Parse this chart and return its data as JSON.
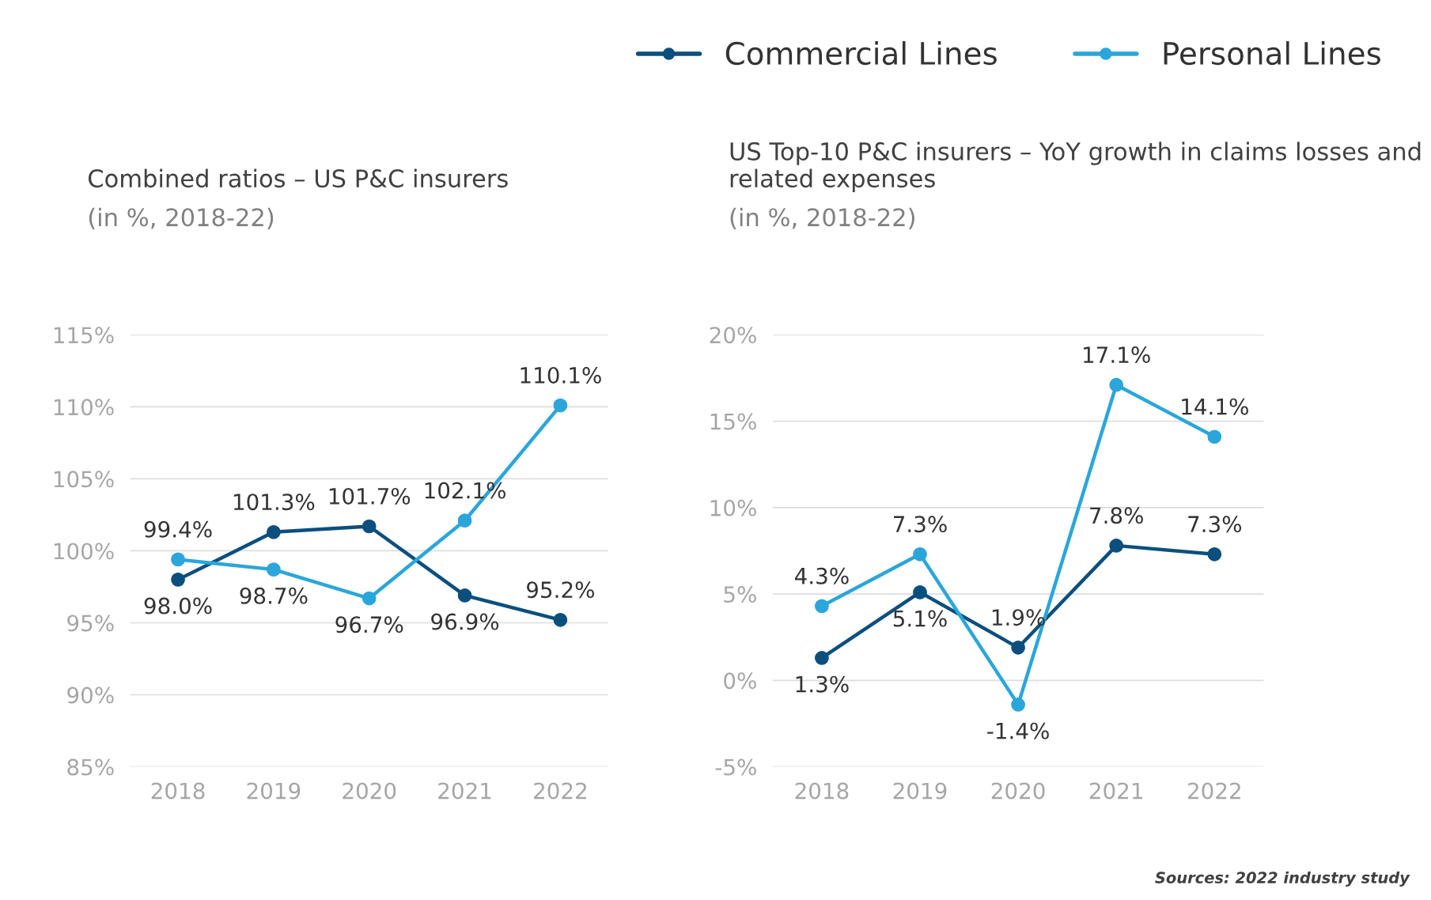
{
  "chart_data": [
    {
      "type": "line",
      "title": "Combined ratios – US P&C insurers",
      "subtitle": "(in %, 2018-22)",
      "categories": [
        "2018",
        "2019",
        "2020",
        "2021",
        "2022"
      ],
      "series": [
        {
          "color": "#0b4f7f",
          "values": [
            98.0,
            101.3,
            101.7,
            96.9,
            95.2
          ],
          "value_labels": [
            "98.0%",
            "101.3%",
            "101.7%",
            "96.9%",
            "95.2%"
          ]
        },
        {
          "color": "#2aa6db",
          "values": [
            99.4,
            98.7,
            96.7,
            102.1,
            110.1
          ],
          "value_labels": [
            "99.4%",
            "98.7%",
            "96.7%",
            "102.1%",
            "110.1%"
          ]
        }
      ],
      "ylim": [
        85,
        115
      ],
      "yticks": [
        {
          "value": 85,
          "label": "85%"
        },
        {
          "value": 90,
          "label": "90%"
        },
        {
          "value": 95,
          "label": "95%"
        },
        {
          "value": 100,
          "label": "100%"
        },
        {
          "value": 105,
          "label": "105%"
        },
        {
          "value": 110,
          "label": "110%"
        },
        {
          "value": 115,
          "label": "115%"
        }
      ],
      "grid": "y",
      "marker": "circle",
      "line_style": "solid"
    },
    {
      "type": "line",
      "title": "US Top-10 P&C insurers – YoY growth in claims losses and related expenses",
      "subtitle": "(in %, 2018-22)",
      "categories": [
        "2018",
        "2019",
        "2020",
        "2021",
        "2022"
      ],
      "series": [
        {
          "name": "Commercial Lines",
          "color": "#0b4f7f",
          "values": [
            1.3,
            5.1,
            1.9,
            7.8,
            7.3
          ],
          "value_labels": [
            "1.3%",
            "5.1%",
            "1.9%",
            "7.8%",
            "7.3%"
          ]
        },
        {
          "name": "Personal Lines",
          "color": "#2aa6db",
          "values": [
            4.3,
            7.3,
            -1.4,
            17.1,
            14.1
          ],
          "value_labels": [
            "4.3%",
            "7.3%",
            "-1.4%",
            "17.1%",
            "14.1%"
          ]
        }
      ],
      "ylim": [
        -5,
        20
      ],
      "yticks": [
        {
          "value": -5,
          "label": "-5%"
        },
        {
          "value": 0,
          "label": "0%"
        },
        {
          "value": 5,
          "label": "5%"
        },
        {
          "value": 10,
          "label": "10%"
        },
        {
          "value": 15,
          "label": "15%"
        },
        {
          "value": 20,
          "label": "20%"
        }
      ],
      "grid": "y",
      "marker": "circle",
      "line_style": "solid",
      "legend": "top right",
      "annotations": [
        "Sources: 2022 industry study"
      ]
    }
  ]
}
